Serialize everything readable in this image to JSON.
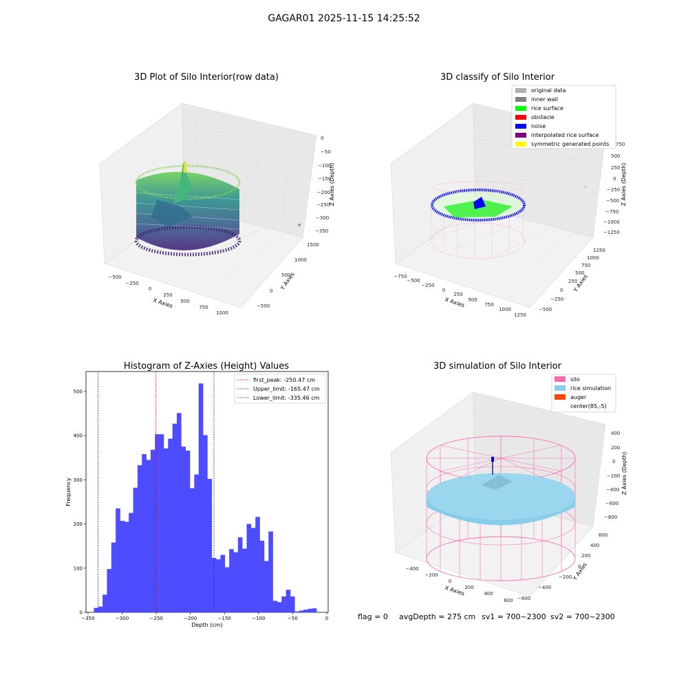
{
  "suptitle": "GAGAR01 2025-11-15 14:25:52",
  "colors": {
    "hist_bar": "#4d4dff",
    "first_peak": "#e00000",
    "limits": "#1a1aff",
    "rice_surface": "#00ff00",
    "noise": "#0000ff",
    "obstacle": "#ff0000",
    "original": "#b2b2b2",
    "inner_wall": "#808080",
    "interpolated": "#800080",
    "symmetric": "#ffff00",
    "silo": "#ff69b4",
    "rice_sim": "#87ceeb",
    "auger": "#ff4500"
  },
  "panel_raw": {
    "title": "3D Plot of Silo Interior(row data)",
    "xlabel": "X Axies",
    "ylabel": "Y Axies",
    "zlabel": "Z Axies (Depth)",
    "xticks": [
      "−500",
      "−250",
      "0",
      "250",
      "500",
      "750",
      "1000"
    ],
    "yticks": [
      "−500",
      "0",
      "500",
      "1000",
      "1500"
    ],
    "zticks": [
      "0",
      "−50",
      "−100",
      "−150",
      "−200",
      "−250",
      "−300",
      "−350"
    ]
  },
  "panel_classify": {
    "title": "3D classify of Silo Interior",
    "xlabel": "X Axies",
    "ylabel": "Y Axies",
    "zlabel": "Z Axies (Depth)",
    "xticks": [
      "−750",
      "−500",
      "−250",
      "0",
      "250",
      "500",
      "750",
      "1000",
      "1250"
    ],
    "yticks": [
      "−500",
      "−250",
      "0",
      "250",
      "500",
      "750",
      "1000",
      "1250"
    ],
    "zticks": [
      "750",
      "500",
      "250",
      "0",
      "−250",
      "−500",
      "−750",
      "−1000",
      "−1250"
    ],
    "legend": [
      {
        "label": "original data",
        "color": "#b2b2b2"
      },
      {
        "label": "inner wall",
        "color": "#808080"
      },
      {
        "label": "rice surface",
        "color": "#00ff00"
      },
      {
        "label": "obstacle",
        "color": "#ff0000"
      },
      {
        "label": "noise",
        "color": "#0000ff"
      },
      {
        "label": "interpolated rice surface",
        "color": "#800080"
      },
      {
        "label": "symmetric generated points",
        "color": "#ffff00"
      }
    ]
  },
  "panel_sim": {
    "title": "3D simulation of Silo Interior",
    "xlabel": "X Axies",
    "ylabel": "Y Axies",
    "zlabel": "Z Axies (Depth)",
    "xticks": [
      "−400",
      "−200",
      "0",
      "200",
      "400",
      "600"
    ],
    "yticks": [
      "−600",
      "−400",
      "−200",
      "0",
      "200",
      "400",
      "600"
    ],
    "zticks": [
      "400",
      "200",
      "0",
      "−200",
      "−400",
      "−600",
      "−800"
    ],
    "legend": [
      {
        "label": "silo",
        "color": "#ff69b4"
      },
      {
        "label": "rice simulation",
        "color": "#87ceeb"
      },
      {
        "label": "auger",
        "color": "#ff4500"
      },
      {
        "label": "center(85,-5)",
        "color": ""
      }
    ]
  },
  "status": {
    "flag": "flag = 0",
    "avg": "avgDepth = 275 cm",
    "sv1": "sv1 = 700~2300",
    "sv2": "sv2 = 700~2300"
  },
  "chart_data": {
    "type": "bar",
    "title": "Histogram of Z-Axies (Height) Values",
    "xlabel": "Depth (cm)",
    "ylabel": "Frequency",
    "xlim": [
      -353,
      2
    ],
    "ylim": [
      0,
      545
    ],
    "xticks": [
      -350,
      -300,
      -250,
      -200,
      -150,
      -100,
      -50,
      0
    ],
    "yticks": [
      0,
      100,
      200,
      300,
      400,
      500
    ],
    "bin_start": -341.5,
    "bin_width": 6.4,
    "values": [
      10,
      13,
      40,
      98,
      158,
      235,
      207,
      205,
      225,
      282,
      333,
      358,
      345,
      368,
      403,
      403,
      371,
      393,
      427,
      451,
      375,
      366,
      281,
      312,
      518,
      401,
      302,
      123,
      120,
      130,
      102,
      143,
      136,
      170,
      144,
      200,
      191,
      216,
      162,
      116,
      183,
      26,
      23,
      36,
      51,
      36,
      2,
      4,
      6,
      8,
      9
    ],
    "lines": [
      {
        "label": "first_peak: -250.47 cm",
        "x": -250.47,
        "color": "#e00000"
      },
      {
        "label": "Upper_limit: -165.47 cm",
        "x": -165.47,
        "color": "#1a1aff"
      },
      {
        "label": "Lower_limit: -335.46 cm",
        "x": -335.46,
        "color": "#1a1aff"
      }
    ]
  }
}
